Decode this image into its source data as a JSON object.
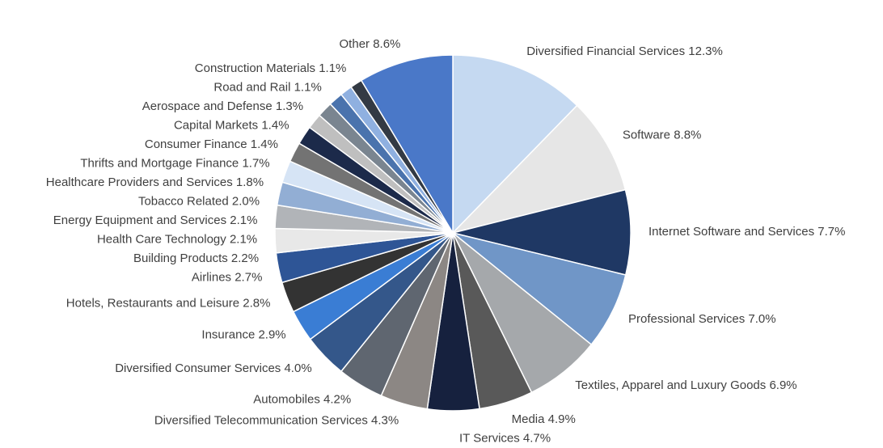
{
  "chart_data": {
    "type": "pie",
    "categories": [
      "Diversified Financial Services",
      "Software",
      "Internet Software and Services",
      "Professional Services",
      "Textiles, Apparel and Luxury Goods",
      "Media",
      "IT Services",
      "Diversified Telecommunication Services",
      "Automobiles",
      "Diversified Consumer Services",
      "Insurance",
      "Hotels, Restaurants and Leisure",
      "Airlines",
      "Building Products",
      "Health Care Technology",
      "Energy Equipment and Services",
      "Tobacco Related",
      "Healthcare Providers and Services",
      "Thrifts and Mortgage Finance",
      "Consumer Finance",
      "Capital Markets",
      "Aerospace and Defense",
      "Road and Rail",
      "Construction Materials",
      "Other"
    ],
    "values": [
      12.3,
      8.8,
      7.7,
      7.0,
      6.9,
      4.9,
      4.7,
      4.3,
      4.2,
      4.0,
      2.9,
      2.8,
      2.7,
      2.2,
      2.1,
      2.1,
      2.0,
      1.8,
      1.7,
      1.4,
      1.4,
      1.3,
      1.1,
      1.1,
      8.6
    ],
    "value_labels": [
      "12.3%",
      "8.8%",
      "7.7%",
      "7.0%",
      "6.9%",
      "4.9%",
      "4.7%",
      "4.3%",
      "4.2%",
      "4.0%",
      "2.9%",
      "2.8%",
      "2.7%",
      "2.2%",
      "2.1%",
      "2.1%",
      "2.0%",
      "1.8%",
      "1.7%",
      "1.4%",
      "1.4%",
      "1.3%",
      "1.1%",
      "1.1%",
      "8.6%"
    ],
    "colors": [
      "#c5d9f1",
      "#e6e6e6",
      "#1f3864",
      "#7096c7",
      "#a5a8ab",
      "#595959",
      "#16213e",
      "#8c8784",
      "#5f6670",
      "#34578a",
      "#3a7dd4",
      "#333333",
      "#2e5596",
      "#e8e8e8",
      "#b1b4b8",
      "#92aed4",
      "#d6e4f5",
      "#737373",
      "#1c2a4a",
      "#bfbfbf",
      "#7a8590",
      "#4a73ad",
      "#8fb0e0",
      "#333a44",
      "#4a78c8"
    ]
  }
}
